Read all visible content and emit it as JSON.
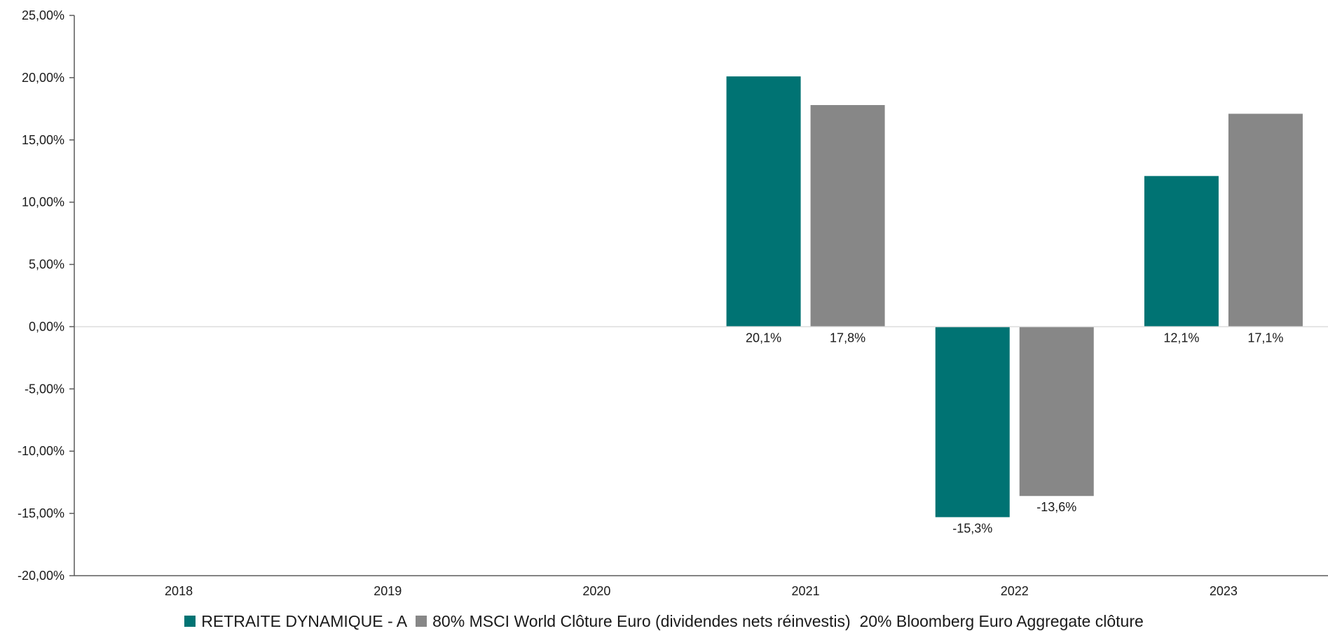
{
  "chart_data": {
    "type": "bar",
    "categories": [
      "2018",
      "2019",
      "2020",
      "2021",
      "2022",
      "2023"
    ],
    "series": [
      {
        "name": "RETRAITE DYNAMIQUE - A",
        "color": "#007373",
        "values": [
          null,
          null,
          null,
          20.1,
          -15.3,
          12.1
        ],
        "labels": [
          "",
          "",
          "",
          "20,1%",
          "-15,3%",
          "12,1%"
        ]
      },
      {
        "name": "80% MSCI World Clôture Euro (dividendes nets réinvestis)  20% Bloomberg Euro Aggregate clôture",
        "color": "#878787",
        "values": [
          null,
          null,
          null,
          17.8,
          -13.6,
          17.1
        ],
        "labels": [
          "",
          "",
          "",
          "17,8%",
          "-13,6%",
          "17,1%"
        ]
      }
    ],
    "ylim": [
      -20,
      25
    ],
    "yticks": [
      25,
      20,
      15,
      10,
      5,
      0,
      -5,
      -10,
      -15,
      -20
    ],
    "ytick_labels": [
      "25,00%",
      "20,00%",
      "15,00%",
      "10,00%",
      "5,00%",
      "0,00%",
      "-5,00%",
      "-10,00%",
      "-15,00%",
      "-20,00%"
    ],
    "title": "",
    "xlabel": "",
    "ylabel": "",
    "legend_position": "bottom",
    "grid": false
  }
}
